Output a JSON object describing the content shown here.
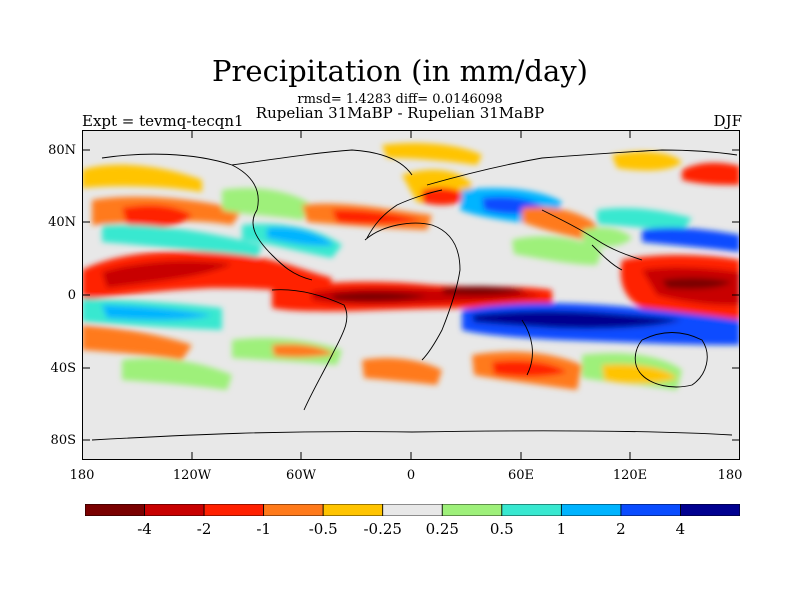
{
  "title": "Precipitation (in mm/day)",
  "stats": "rmsd= 1.4283 diff= 0.0146098",
  "subtitle": "Rupelian  31MaBP - Rupelian  31MaBP",
  "left_label": "Expt = tevmq-tecqn1",
  "right_label": "DJF",
  "lat_labels": [
    "80N",
    "40N",
    "0",
    "40S",
    "80S"
  ],
  "lon_labels": [
    "180",
    "120W",
    "60W",
    "0",
    "60E",
    "120E",
    "180"
  ],
  "colorbar": {
    "colors": [
      "#7a0000",
      "#c80000",
      "#ff2000",
      "#ff7a1a",
      "#ffc400",
      "#e8e8e8",
      "#9ef07a",
      "#38e8d0",
      "#00b4ff",
      "#0a4cff",
      "#000090"
    ],
    "labels": [
      "-4",
      "-2",
      "-1",
      "-0.5",
      "-0.25",
      "0.25",
      "0.5",
      "1",
      "2",
      "4"
    ]
  }
}
